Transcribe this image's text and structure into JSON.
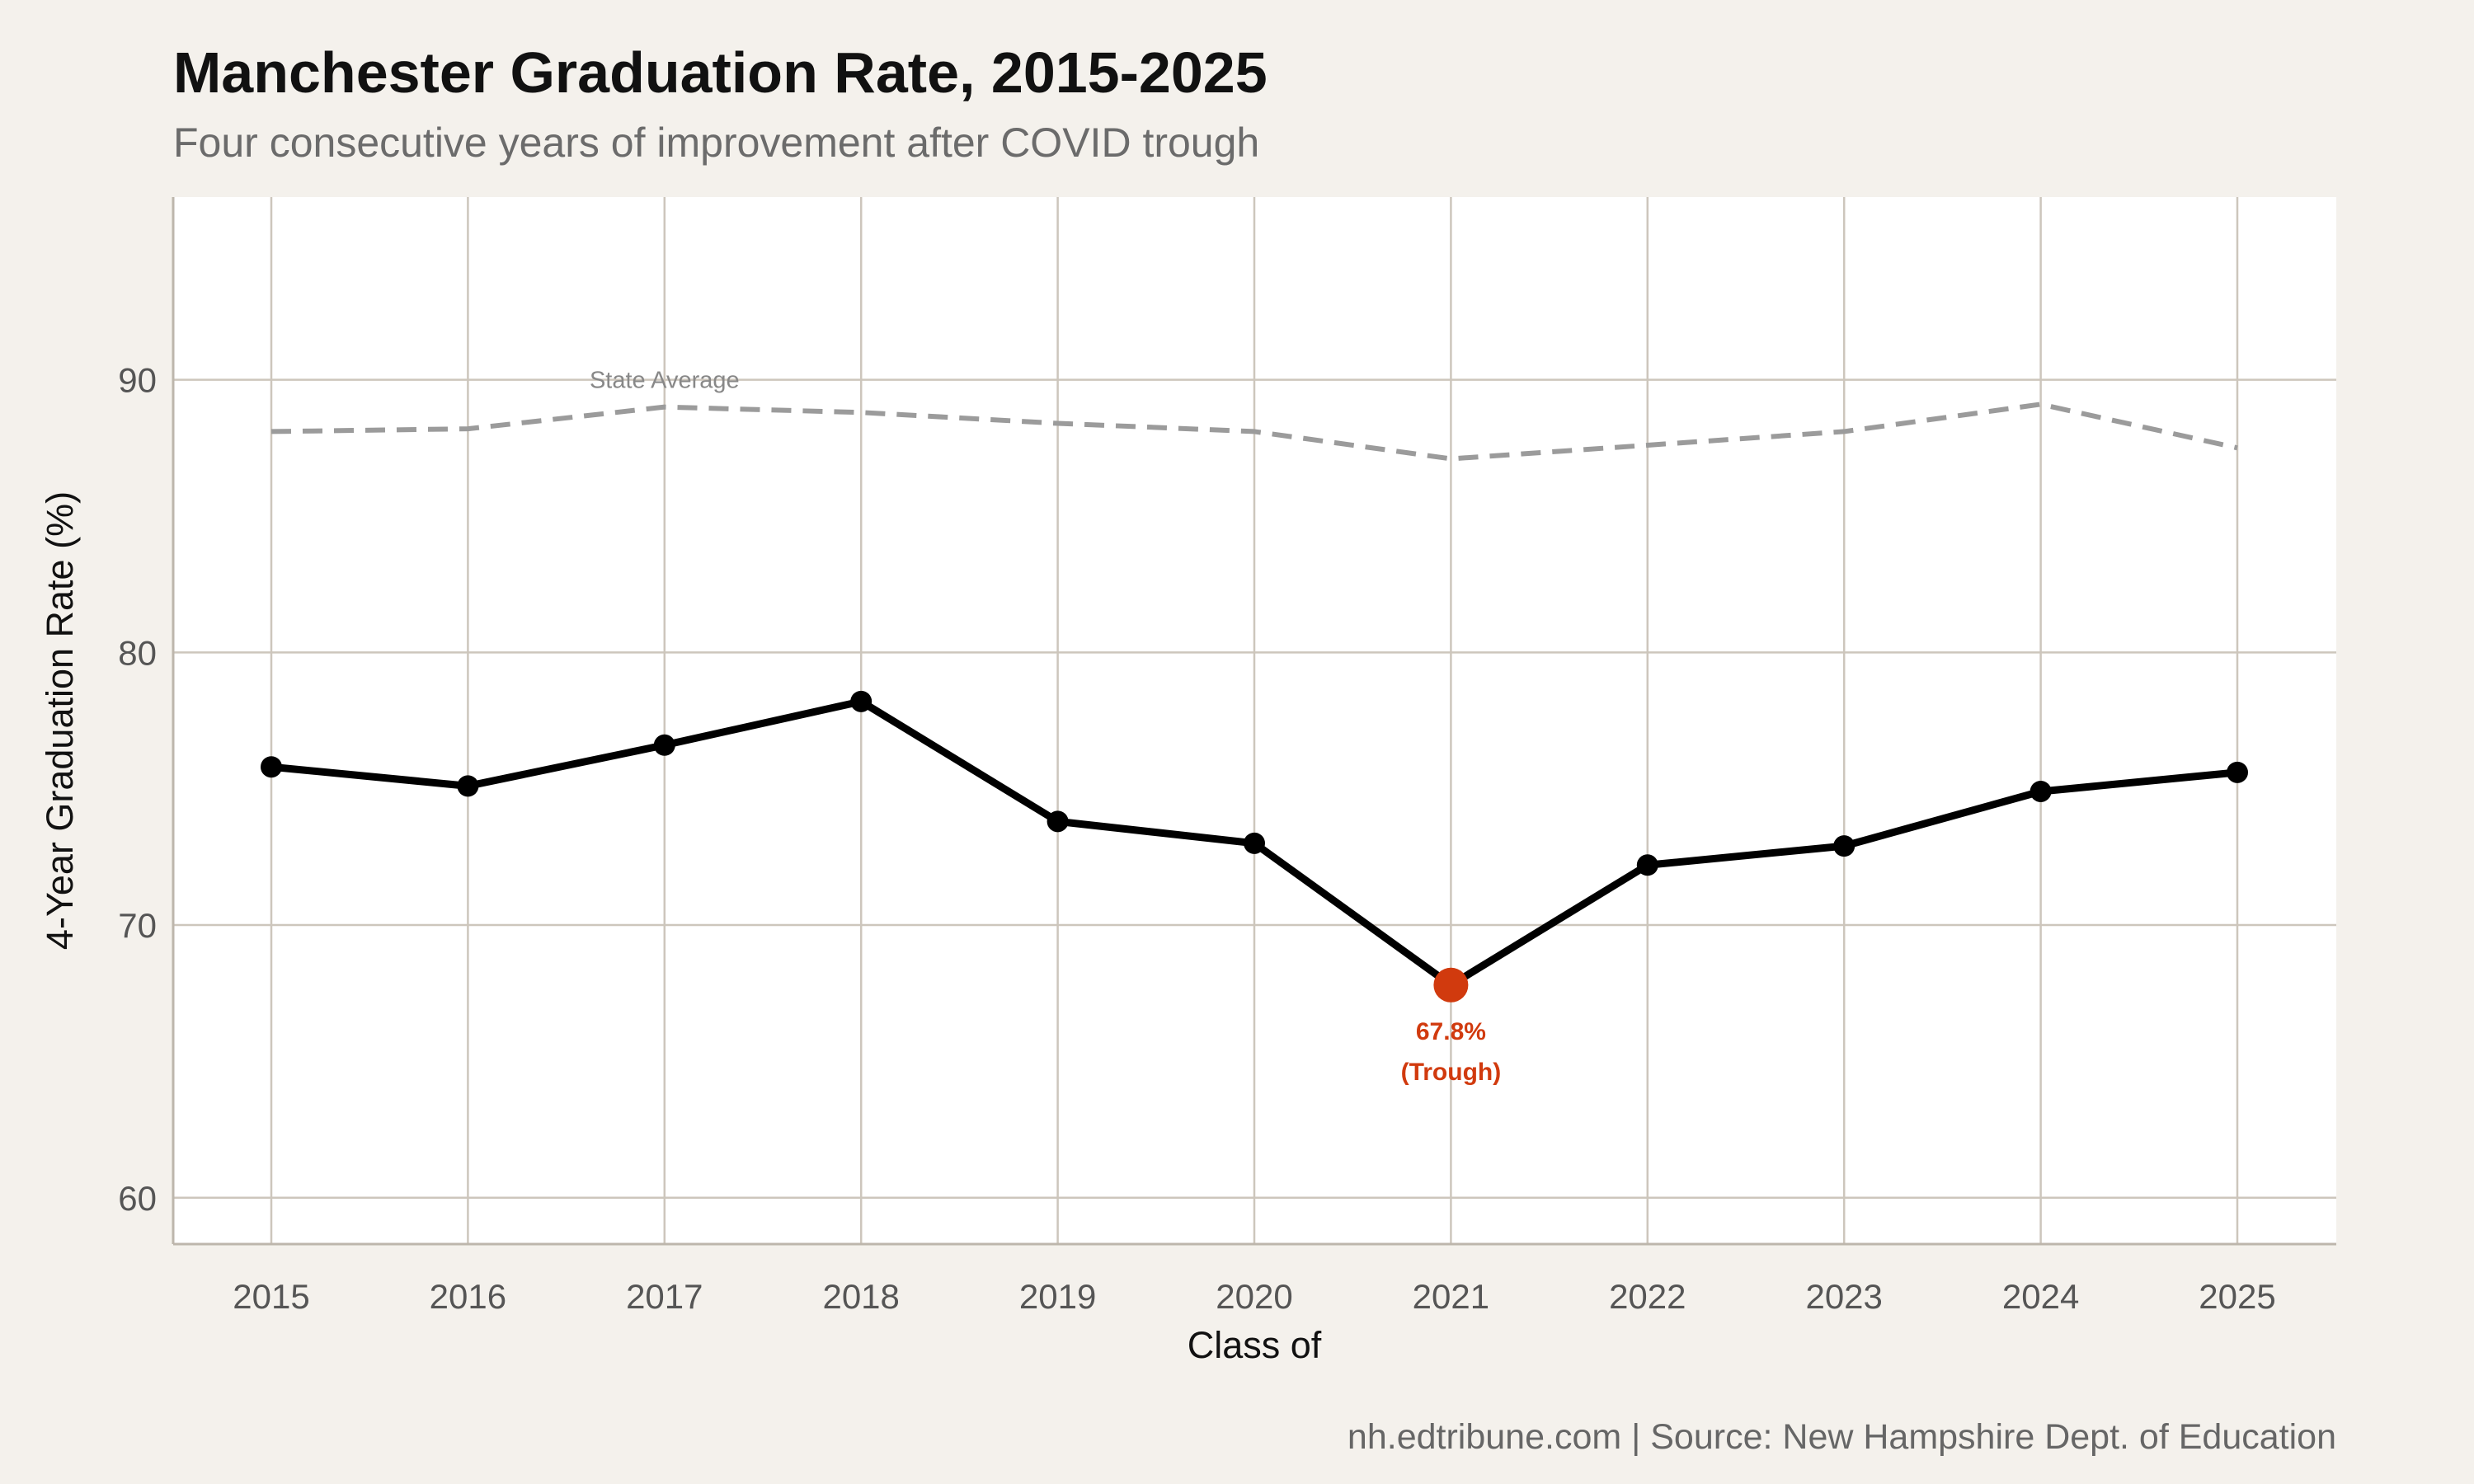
{
  "title": "Manchester Graduation Rate, 2015-2025",
  "subtitle": "Four consecutive years of improvement after COVID trough",
  "caption": "nh.edtribune.com | Source: New Hampshire Dept. of Education",
  "colors": {
    "background": "#f4f1ec",
    "panel": "#ffffff",
    "main_line": "#000000",
    "state_line": "#9b9b9b",
    "highlight": "#d13a0e",
    "grid": "#cdc6bc"
  },
  "chart_data": {
    "type": "line",
    "title": "Manchester Graduation Rate, 2015-2025",
    "subtitle": "Four consecutive years of improvement after COVID trough",
    "xlabel": "Class of",
    "ylabel": "4-Year Graduation Rate (%)",
    "x": [
      2015,
      2016,
      2017,
      2018,
      2019,
      2020,
      2021,
      2022,
      2023,
      2024,
      2025
    ],
    "xticks": [
      "2015",
      "2016",
      "2017",
      "2018",
      "2019",
      "2020",
      "2021",
      "2022",
      "2023",
      "2024",
      "2025"
    ],
    "yticks": [
      "60",
      "70",
      "80",
      "90"
    ],
    "ylim": [
      58.3,
      96.7
    ],
    "grid": true,
    "series": [
      {
        "values": [
          75.8,
          75.1,
          76.6,
          78.2,
          73.8,
          73.0,
          67.8,
          72.2,
          72.9,
          74.9,
          75.6
        ],
        "style": "solid",
        "markers": true
      },
      {
        "name": "State Average",
        "values": [
          88.1,
          88.2,
          89.0,
          88.8,
          88.4,
          88.1,
          87.1,
          87.6,
          88.1,
          89.1,
          87.5
        ],
        "style": "dashed"
      }
    ],
    "annotations": [
      {
        "x": 2021,
        "y": 67.8,
        "line1": "67.8%",
        "line2": "(Trough)"
      }
    ],
    "state_label": "State Average"
  }
}
